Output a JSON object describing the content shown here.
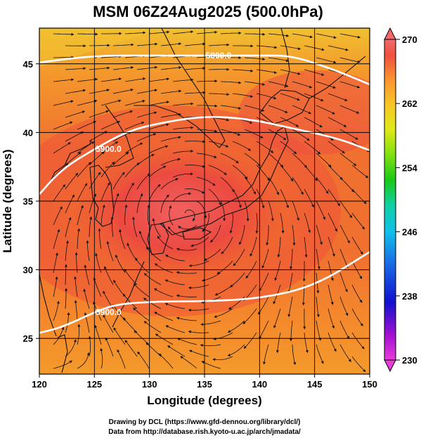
{
  "title": "MSM 06Z24Aug2025 (500.0hPa)",
  "xlabel": "Longitude (degrees)",
  "ylabel": "Latitude  (degrees)",
  "x_ticks": [
    "120",
    "125",
    "130",
    "135",
    "140",
    "145",
    "150"
  ],
  "y_ticks": [
    "45",
    "40",
    "35",
    "30",
    "25"
  ],
  "colorbar": {
    "ticks": [
      "270",
      "262",
      "254",
      "246",
      "238",
      "230"
    ],
    "range": [
      230,
      270
    ],
    "colors": [
      "#e83cd8",
      "#7a00c8",
      "#1010d0",
      "#1a6ae6",
      "#10b8e8",
      "#10d0a8",
      "#18c818",
      "#78e010",
      "#d8e818",
      "#f8c828",
      "#f89828",
      "#f86a30",
      "#f04848",
      "#f06a6a"
    ]
  },
  "contour_labels": [
    "5800.0",
    "5900.0",
    "5900.0"
  ],
  "credits": {
    "line1": "Drawing by DCL (https://www.gfd-dennou.org/library/dcl/)",
    "line2": "Data from http://database.rish.kyoto-u.ac.jp/arch/jmadata/"
  },
  "chart_data": {
    "type": "map",
    "title": "MSM 06Z24Aug2025 (500.0hPa)",
    "xlabel": "Longitude (degrees)",
    "ylabel": "Latitude  (degrees)",
    "xlim": [
      120,
      150
    ],
    "ylim": [
      22.4,
      47.6
    ],
    "x_ticks": [
      120,
      125,
      130,
      135,
      140,
      145,
      150
    ],
    "y_ticks": [
      25,
      30,
      35,
      40,
      45
    ],
    "grid": true,
    "field": "temperature (shaded)",
    "colorbar_range": [
      230,
      270
    ],
    "colorbar_ticks": [
      230,
      238,
      246,
      254,
      262,
      270
    ],
    "contours": [
      {
        "label": "5800.0",
        "points": [
          [
            120,
            45.1
          ],
          [
            125,
            45.6
          ],
          [
            130,
            45.6
          ],
          [
            135,
            45.6
          ],
          [
            140,
            45.6
          ],
          [
            143,
            45.6
          ],
          [
            147,
            44.5
          ],
          [
            150,
            43.5
          ]
        ]
      },
      {
        "label": "5900.0",
        "points": [
          [
            120,
            35.5
          ],
          [
            122,
            37.3
          ],
          [
            125,
            38.8
          ],
          [
            128,
            40.1
          ],
          [
            131,
            40.7
          ],
          [
            135,
            41.2
          ],
          [
            139,
            41.0
          ],
          [
            143,
            40.3
          ],
          [
            147,
            39.6
          ],
          [
            150,
            38.7
          ]
        ]
      },
      {
        "label": "5900.0",
        "points": [
          [
            120,
            25.4
          ],
          [
            122,
            25.8
          ],
          [
            125,
            26.9
          ],
          [
            127,
            27.5
          ],
          [
            131,
            27.7
          ],
          [
            135,
            27.7
          ],
          [
            140,
            27.9
          ],
          [
            145,
            28.8
          ],
          [
            150,
            31.3
          ]
        ]
      }
    ],
    "anticyclone_center": [
      133.5,
      34.0
    ]
  }
}
